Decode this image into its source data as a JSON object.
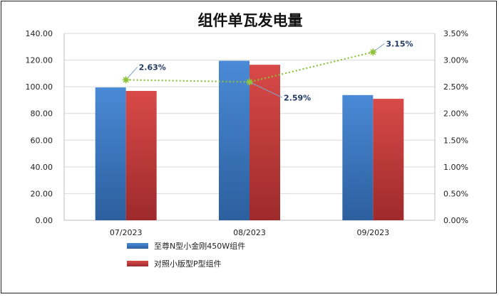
{
  "chart_data": {
    "type": "bar",
    "title": "组件单瓦发电量",
    "categories": [
      "07/2023",
      "08/2023",
      "09/2023"
    ],
    "series": [
      {
        "name": "至尊N型小金刚450W组件",
        "type": "bar",
        "axis": "left",
        "color": "#3a78c8",
        "values": [
          99.5,
          119.5,
          93.8
        ]
      },
      {
        "name": "对照小版型P型组件",
        "type": "bar",
        "axis": "left",
        "color": "#c8393a",
        "values": [
          96.9,
          116.5,
          91.0
        ]
      },
      {
        "name": "",
        "type": "line",
        "axis": "right",
        "color": "#8fc33b",
        "style": "dotted",
        "values": [
          0.0263,
          0.0259,
          0.0315
        ],
        "labels": [
          "2.63%",
          "2.59%",
          "3.15%"
        ]
      }
    ],
    "y_left": {
      "range": [
        0,
        140
      ],
      "ticks": [
        "0.00",
        "20.00",
        "40.00",
        "60.00",
        "80.00",
        "100.00",
        "120.00",
        "140.00"
      ]
    },
    "y_right": {
      "range": [
        0,
        0.035
      ],
      "ticks": [
        "0.00%",
        "0.50%",
        "1.00%",
        "1.50%",
        "2.00%",
        "2.50%",
        "3.00%",
        "3.50%"
      ]
    },
    "grid": true,
    "legend_position": "bottom-left"
  }
}
